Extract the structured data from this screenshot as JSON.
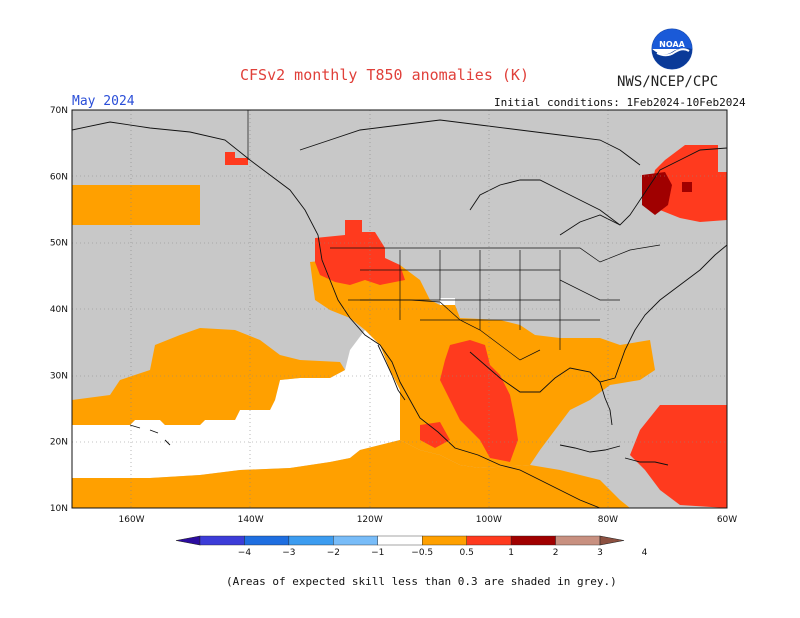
{
  "title": "CFSv2 monthly T850 anomalies (K)",
  "agency": "NWS/NCEP/CPC",
  "logo_text": "NOAA",
  "valid_month": "May 2024",
  "initial_conditions": "Initial conditions: 1Feb2024-10Feb2024",
  "footnote": "(Areas of expected skill less than 0.3 are shaded in grey.)",
  "map": {
    "lat_labels": [
      "70N",
      "60N",
      "50N",
      "40N",
      "30N",
      "20N",
      "10N"
    ],
    "lon_labels": [
      "160W",
      "140W",
      "120W",
      "100W",
      "80W",
      "60W"
    ],
    "lat_range": [
      10,
      70
    ],
    "lon_range": [
      -170,
      -60
    ],
    "background_colors": {
      "grey_low_skill": "#c8c8c8",
      "neutral": "#ffffff"
    },
    "anomaly_regions": [
      {
        "name": "gulf-of-alaska-warm",
        "class": "0.5-1",
        "color": "#ffa000"
      },
      {
        "name": "pacific-northwest-warm",
        "class": "1-2",
        "color": "#ff3a1e"
      },
      {
        "name": "intermountain-west-warm",
        "class": "0.5-1",
        "color": "#ffa000"
      },
      {
        "name": "southern-us-mexico-warm",
        "class": "0.5-1",
        "color": "#ffa000"
      },
      {
        "name": "mexico-core-warm",
        "class": "1-2",
        "color": "#ff3a1e"
      },
      {
        "name": "subtropical-pacific-warm",
        "class": "0.5-1",
        "color": "#ffa000"
      },
      {
        "name": "eastern-canada-warm",
        "class": "1-2",
        "color": "#ff3a1e"
      },
      {
        "name": "eastern-canada-hot",
        "class": "2-3",
        "color": "#a00000"
      },
      {
        "name": "caribbean-atlantic-warm",
        "class": "1-2",
        "color": "#ff3a1e"
      },
      {
        "name": "eastern-pacific-neutral",
        "class": "-0.5-0.5",
        "color": "#ffffff"
      }
    ]
  },
  "colorbar": {
    "labels": [
      "−4",
      "−3",
      "−2",
      "−1",
      "−0.5",
      "0.5",
      "1",
      "2",
      "3",
      "4"
    ],
    "colors": [
      "#2c0ca0",
      "#3c3cd8",
      "#1e6ee0",
      "#3c9cf0",
      "#78bcf8",
      "#ffffff",
      "#ffa000",
      "#ff3a1e",
      "#a00000",
      "#c89080",
      "#8c5040"
    ]
  }
}
